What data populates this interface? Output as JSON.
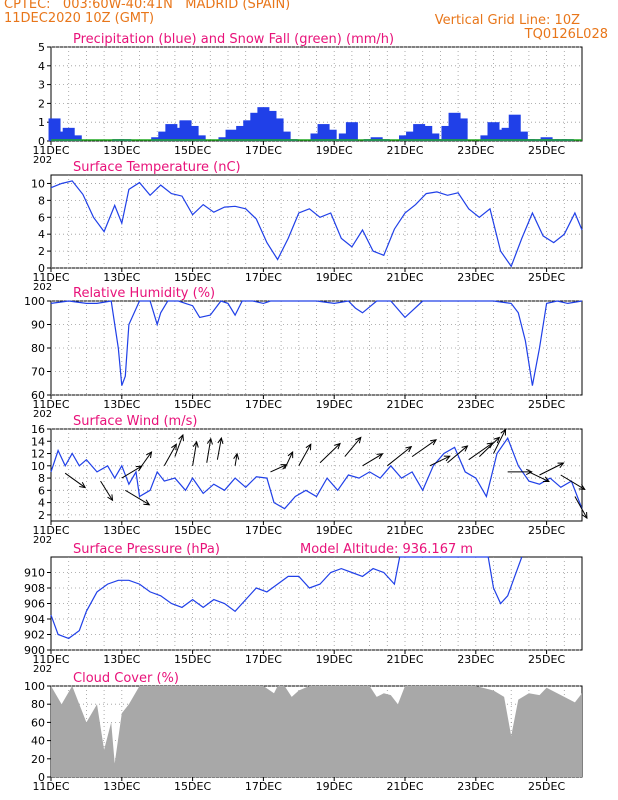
{
  "header": {
    "line1": "CPTEC:   003:60W-40:41N   MADRID (SPAIN)",
    "line2_left": "11DEC2020 10Z (GMT)",
    "line2_right": "Vertical Grid Line: 10Z",
    "code": "TQ0126L028",
    "year_fragment": "202"
  },
  "colors": {
    "header": "#e8761a",
    "title": "#e8127a",
    "line": "#2040e8",
    "precip": "#2040e8",
    "snow": "#22aa22",
    "cloud": "#a8a8a8",
    "arrow": "#000000"
  },
  "x_ticks": [
    "11DEC",
    "13DEC",
    "15DEC",
    "17DEC",
    "19DEC",
    "21DEC",
    "23DEC",
    "25DEC"
  ],
  "chart_data": [
    {
      "id": "precip",
      "type": "bar",
      "title": "Precipitation (blue) and Snow Fall (green) (mm/h)",
      "ylim": [
        0,
        5
      ],
      "yticks": [
        "0",
        "1",
        "2",
        "3",
        "4",
        "5"
      ],
      "series": [
        {
          "name": "Precipitation",
          "x": [
            0.1,
            0.3,
            0.5,
            0.7,
            1.9,
            2.1,
            3.0,
            3.2,
            3.4,
            3.6,
            3.8,
            4.0,
            4.2,
            4.9,
            5.1,
            5.4,
            5.6,
            5.8,
            6.0,
            6.2,
            6.4,
            6.6,
            6.8,
            7.5,
            7.7,
            7.9,
            8.1,
            8.3,
            8.5,
            9.0,
            9.2,
            9.4,
            10.0,
            10.2,
            10.4,
            10.6,
            10.8,
            11.0,
            11.2,
            11.4,
            11.6,
            12.3,
            12.5,
            12.7,
            12.9,
            13.1,
            13.3,
            13.5,
            13.7,
            14.0,
            14.2,
            14.4,
            14.6
          ],
          "values": [
            1.2,
            0.5,
            0.7,
            0.3,
            0.1,
            0.1,
            0.2,
            0.5,
            0.9,
            0.7,
            1.1,
            0.8,
            0.3,
            0.2,
            0.6,
            0.8,
            1.1,
            1.5,
            1.8,
            1.6,
            1.2,
            0.5,
            0.1,
            0.4,
            0.9,
            0.6,
            0.1,
            0.4,
            1.0,
            0.1,
            0.2,
            0.1,
            0.3,
            0.5,
            0.9,
            0.8,
            0.4,
            0.1,
            0.8,
            1.5,
            1.2,
            0.3,
            1.0,
            0.6,
            0.7,
            1.4,
            0.5,
            0.1,
            0.1,
            0.2,
            0.1,
            0.1,
            0.1
          ]
        },
        {
          "name": "Snow Fall",
          "x": [],
          "values": []
        }
      ]
    },
    {
      "id": "temp",
      "type": "line",
      "title": "Surface Temperature (nC)",
      "ylim": [
        0,
        11
      ],
      "yticks": [
        "0",
        "2",
        "4",
        "6",
        "8",
        "10"
      ],
      "x": [
        0,
        0.3,
        0.6,
        0.9,
        1.2,
        1.5,
        1.8,
        2.0,
        2.2,
        2.5,
        2.8,
        3.1,
        3.4,
        3.7,
        4.0,
        4.3,
        4.6,
        4.9,
        5.2,
        5.5,
        5.8,
        6.1,
        6.4,
        6.7,
        7.0,
        7.3,
        7.6,
        7.9,
        8.2,
        8.5,
        8.8,
        9.1,
        9.4,
        9.7,
        10.0,
        10.3,
        10.6,
        10.9,
        11.2,
        11.5,
        11.8,
        12.1,
        12.4,
        12.7,
        13.0,
        13.3,
        13.6,
        13.9,
        14.2,
        14.5,
        14.8,
        15.0
      ],
      "values": [
        9.5,
        10.0,
        10.3,
        8.7,
        6.0,
        4.3,
        7.4,
        5.3,
        9.3,
        10.1,
        8.6,
        9.8,
        8.8,
        8.5,
        6.3,
        7.5,
        6.6,
        7.2,
        7.3,
        7.0,
        5.8,
        3.0,
        1.0,
        3.5,
        6.5,
        7.0,
        6.0,
        6.5,
        3.5,
        2.5,
        4.5,
        2.0,
        1.5,
        4.6,
        6.5,
        7.5,
        8.8,
        9.0,
        8.6,
        8.9,
        7.0,
        6.0,
        7.0,
        2.0,
        0.2,
        3.5,
        6.5,
        3.8,
        3.0,
        4.0,
        6.5,
        4.5
      ]
    },
    {
      "id": "rh",
      "type": "line",
      "title": "Relative Humidity (%)",
      "ylim": [
        60,
        100
      ],
      "yticks": [
        "60",
        "70",
        "80",
        "90",
        "100"
      ],
      "x": [
        0,
        0.5,
        1.0,
        1.3,
        1.7,
        1.9,
        2.0,
        2.1,
        2.2,
        2.5,
        2.8,
        2.9,
        3.0,
        3.1,
        3.3,
        3.6,
        3.8,
        4.0,
        4.2,
        4.5,
        4.8,
        5.0,
        5.2,
        5.4,
        5.7,
        6.0,
        6.2,
        6.4,
        6.6,
        6.8,
        7.0,
        7.5,
        8.0,
        8.4,
        8.6,
        8.8,
        9.2,
        9.6,
        10.0,
        10.5,
        11.0,
        11.5,
        12.0,
        12.5,
        13.0,
        13.2,
        13.4,
        13.6,
        13.8,
        14.0,
        14.3,
        14.6,
        15.0
      ],
      "values": [
        99,
        100,
        99,
        99,
        100,
        80,
        64,
        68,
        90,
        100,
        100,
        95,
        90,
        95,
        100,
        100,
        99,
        98,
        93,
        94,
        100,
        99,
        94,
        100,
        100,
        99,
        100,
        100,
        100,
        100,
        100,
        100,
        99,
        100,
        97,
        95,
        100,
        100,
        93,
        100,
        100,
        100,
        100,
        100,
        99,
        95,
        83,
        64,
        80,
        99,
        100,
        99,
        100
      ]
    },
    {
      "id": "wind",
      "type": "line",
      "title": "Surface Wind (m/s)",
      "ylim": [
        1,
        16
      ],
      "yticks": [
        "2",
        "4",
        "6",
        "8",
        "10",
        "12",
        "14",
        "16"
      ],
      "x": [
        0,
        0.2,
        0.4,
        0.6,
        0.8,
        1.0,
        1.3,
        1.6,
        1.8,
        2.0,
        2.2,
        2.4,
        2.5,
        2.8,
        3.0,
        3.2,
        3.5,
        3.8,
        4.0,
        4.3,
        4.6,
        4.9,
        5.2,
        5.5,
        5.8,
        6.1,
        6.3,
        6.6,
        6.9,
        7.2,
        7.5,
        7.8,
        8.1,
        8.4,
        8.7,
        9.0,
        9.3,
        9.6,
        9.9,
        10.2,
        10.5,
        10.8,
        11.1,
        11.4,
        11.7,
        12.0,
        12.3,
        12.6,
        12.9,
        13.2,
        13.5,
        13.8,
        14.1,
        14.4,
        14.7,
        15.0
      ],
      "values": [
        9,
        12.5,
        10,
        12,
        10,
        11,
        9,
        10,
        8,
        10,
        7,
        9,
        5,
        6,
        9,
        7.5,
        8,
        6,
        8,
        5.5,
        7,
        6,
        8,
        6.5,
        8.2,
        8,
        4,
        3,
        5,
        6,
        5,
        8,
        6,
        8.5,
        8,
        9,
        8,
        10,
        8,
        9,
        6,
        10,
        12,
        13,
        9,
        8,
        5,
        12,
        14.5,
        10,
        7.5,
        7,
        8,
        6.5,
        7.5,
        3
      ]
    },
    {
      "id": "press",
      "type": "line",
      "title": "Surface Pressure (hPa)",
      "subtitle": "Model Altitude: 936.167 m",
      "ylim": [
        900,
        912
      ],
      "yticks": [
        "900",
        "902",
        "904",
        "906",
        "908",
        "910"
      ],
      "x": [
        0,
        0.2,
        0.5,
        0.8,
        1.0,
        1.3,
        1.6,
        1.9,
        2.2,
        2.5,
        2.8,
        3.1,
        3.4,
        3.7,
        4.0,
        4.3,
        4.6,
        4.9,
        5.2,
        5.5,
        5.8,
        6.1,
        6.4,
        6.7,
        7.0,
        7.3,
        7.6,
        7.9,
        8.2,
        8.5,
        8.8,
        9.1,
        9.4,
        9.7,
        9.85,
        12.35,
        12.5,
        12.7,
        12.9,
        13.1,
        13.3
      ],
      "values": [
        904.5,
        902,
        901.5,
        902.5,
        905,
        907.5,
        908.5,
        909,
        909,
        908.5,
        907.5,
        907,
        906,
        905.5,
        906.5,
        905.5,
        906.5,
        906,
        905,
        906.5,
        908,
        907.5,
        908.5,
        909.5,
        909.5,
        908,
        908.5,
        910,
        910.5,
        910,
        909.5,
        910.5,
        910,
        908.5,
        912,
        912,
        908,
        906,
        907,
        909.5,
        912
      ]
    },
    {
      "id": "cloud",
      "type": "area",
      "title": "Cloud Cover (%)",
      "ylim": [
        0,
        100
      ],
      "yticks": [
        "0",
        "20",
        "40",
        "60",
        "80",
        "100"
      ],
      "x": [
        0,
        0.3,
        0.6,
        0.8,
        1.0,
        1.3,
        1.5,
        1.7,
        1.8,
        2.0,
        2.2,
        2.5,
        3.0,
        4.0,
        5.0,
        6.0,
        6.3,
        6.4,
        6.6,
        6.8,
        7.0,
        7.3,
        7.5,
        8.0,
        9.0,
        9.2,
        9.4,
        9.6,
        9.8,
        10.0,
        11.0,
        12.0,
        12.5,
        12.8,
        13.0,
        13.2,
        13.5,
        13.8,
        14.0,
        14.5,
        14.8,
        15.0
      ],
      "values": [
        100,
        80,
        100,
        80,
        60,
        80,
        30,
        60,
        15,
        70,
        80,
        100,
        100,
        100,
        100,
        100,
        92,
        100,
        100,
        88,
        95,
        100,
        100,
        100,
        100,
        88,
        92,
        90,
        80,
        100,
        100,
        100,
        95,
        88,
        45,
        85,
        92,
        90,
        98,
        88,
        82,
        92
      ]
    }
  ]
}
